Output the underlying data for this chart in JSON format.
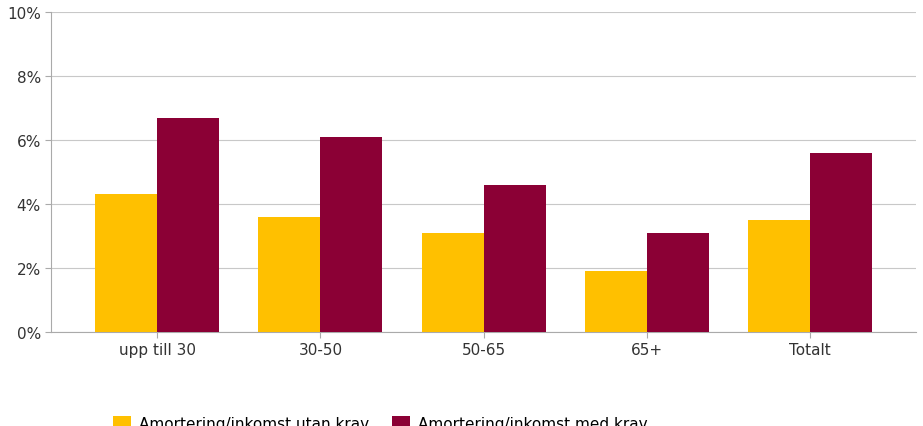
{
  "categories": [
    "upp till 30",
    "30-50",
    "50-65",
    "65+",
    "Totalt"
  ],
  "series": [
    {
      "name": "Amortering/inkomst utan krav",
      "values": [
        0.043,
        0.036,
        0.031,
        0.019,
        0.035
      ],
      "color": "#FFC000"
    },
    {
      "name": "Amortering/inkomst med krav",
      "values": [
        0.067,
        0.061,
        0.046,
        0.031,
        0.056
      ],
      "color": "#8B0035"
    }
  ],
  "ylim": [
    0,
    0.1
  ],
  "yticks": [
    0.0,
    0.02,
    0.04,
    0.06,
    0.08,
    0.1
  ],
  "ytick_labels": [
    "0%",
    "2%",
    "4%",
    "6%",
    "8%",
    "10%"
  ],
  "bar_width": 0.38,
  "background_color": "#FFFFFF",
  "grid_color": "#C8C8C8",
  "legend_ncol": 2,
  "tick_color": "#888888",
  "spine_color": "#AAAAAA"
}
